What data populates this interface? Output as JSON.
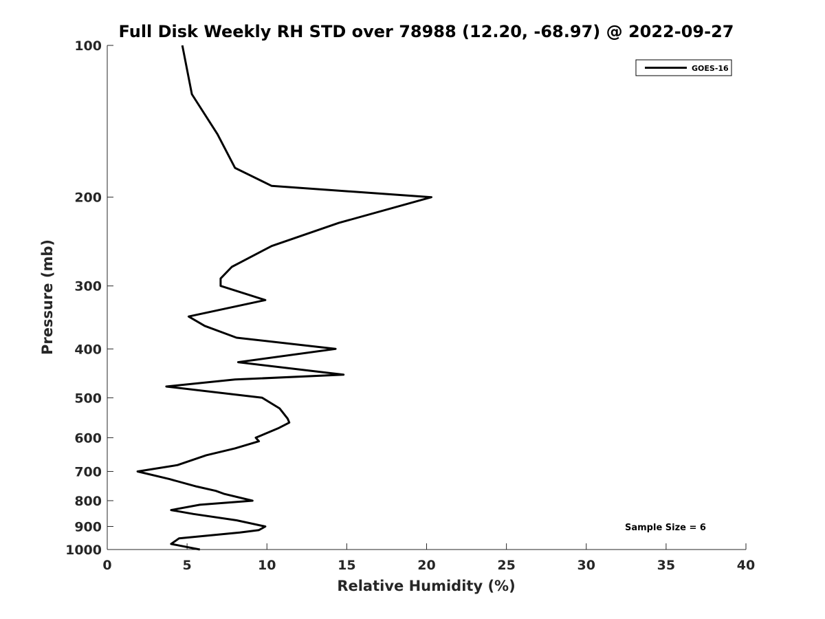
{
  "chart_data": {
    "type": "line",
    "title": "Full Disk Weekly RH STD over 78988 (12.20, -68.97) @ 2022-09-27",
    "xlabel": "Relative Humidity (%)",
    "ylabel": "Pressure (mb)",
    "xlim": [
      0,
      40
    ],
    "ylim": [
      100,
      1000
    ],
    "yscale": "log",
    "y_reversed": true,
    "grid": false,
    "legend_position": "top-right",
    "xticks": [
      0,
      5,
      10,
      15,
      20,
      25,
      30,
      35,
      40
    ],
    "xtick_labels": [
      "0",
      "5",
      "10",
      "15",
      "20",
      "25",
      "30",
      "35",
      "40"
    ],
    "yticks": [
      100,
      200,
      300,
      400,
      500,
      600,
      700,
      800,
      900,
      1000
    ],
    "ytick_labels": [
      "100",
      "200",
      "300",
      "400",
      "500",
      "600",
      "700",
      "800",
      "900",
      "1000"
    ],
    "series": [
      {
        "name": "GOES-16",
        "color": "#000000",
        "points": [
          [
            4.7,
            100
          ],
          [
            5.3,
            125
          ],
          [
            6.9,
            150
          ],
          [
            8.0,
            175
          ],
          [
            10.3,
            190
          ],
          [
            20.3,
            200
          ],
          [
            14.5,
            225
          ],
          [
            10.3,
            250
          ],
          [
            7.8,
            275
          ],
          [
            7.1,
            290
          ],
          [
            7.1,
            300
          ],
          [
            9.9,
            320
          ],
          [
            5.1,
            345
          ],
          [
            6.1,
            360
          ],
          [
            8.1,
            380
          ],
          [
            14.3,
            400
          ],
          [
            8.2,
            425
          ],
          [
            14.8,
            450
          ],
          [
            8.0,
            460
          ],
          [
            3.7,
            475
          ],
          [
            9.7,
            500
          ],
          [
            10.8,
            525
          ],
          [
            11.3,
            550
          ],
          [
            11.4,
            560
          ],
          [
            10.7,
            575
          ],
          [
            9.3,
            600
          ],
          [
            9.5,
            610
          ],
          [
            8.0,
            630
          ],
          [
            6.2,
            650
          ],
          [
            4.4,
            680
          ],
          [
            1.9,
            700
          ],
          [
            3.9,
            725
          ],
          [
            5.6,
            750
          ],
          [
            6.8,
            765
          ],
          [
            7.3,
            775
          ],
          [
            9.1,
            800
          ],
          [
            5.8,
            815
          ],
          [
            4.0,
            835
          ],
          [
            5.4,
            850
          ],
          [
            8.1,
            875
          ],
          [
            9.9,
            900
          ],
          [
            9.5,
            915
          ],
          [
            8.3,
            925
          ],
          [
            4.5,
            950
          ],
          [
            4.0,
            975
          ],
          [
            5.8,
            1000
          ]
        ]
      }
    ],
    "annotations": [
      "Sample Size = 6"
    ]
  }
}
